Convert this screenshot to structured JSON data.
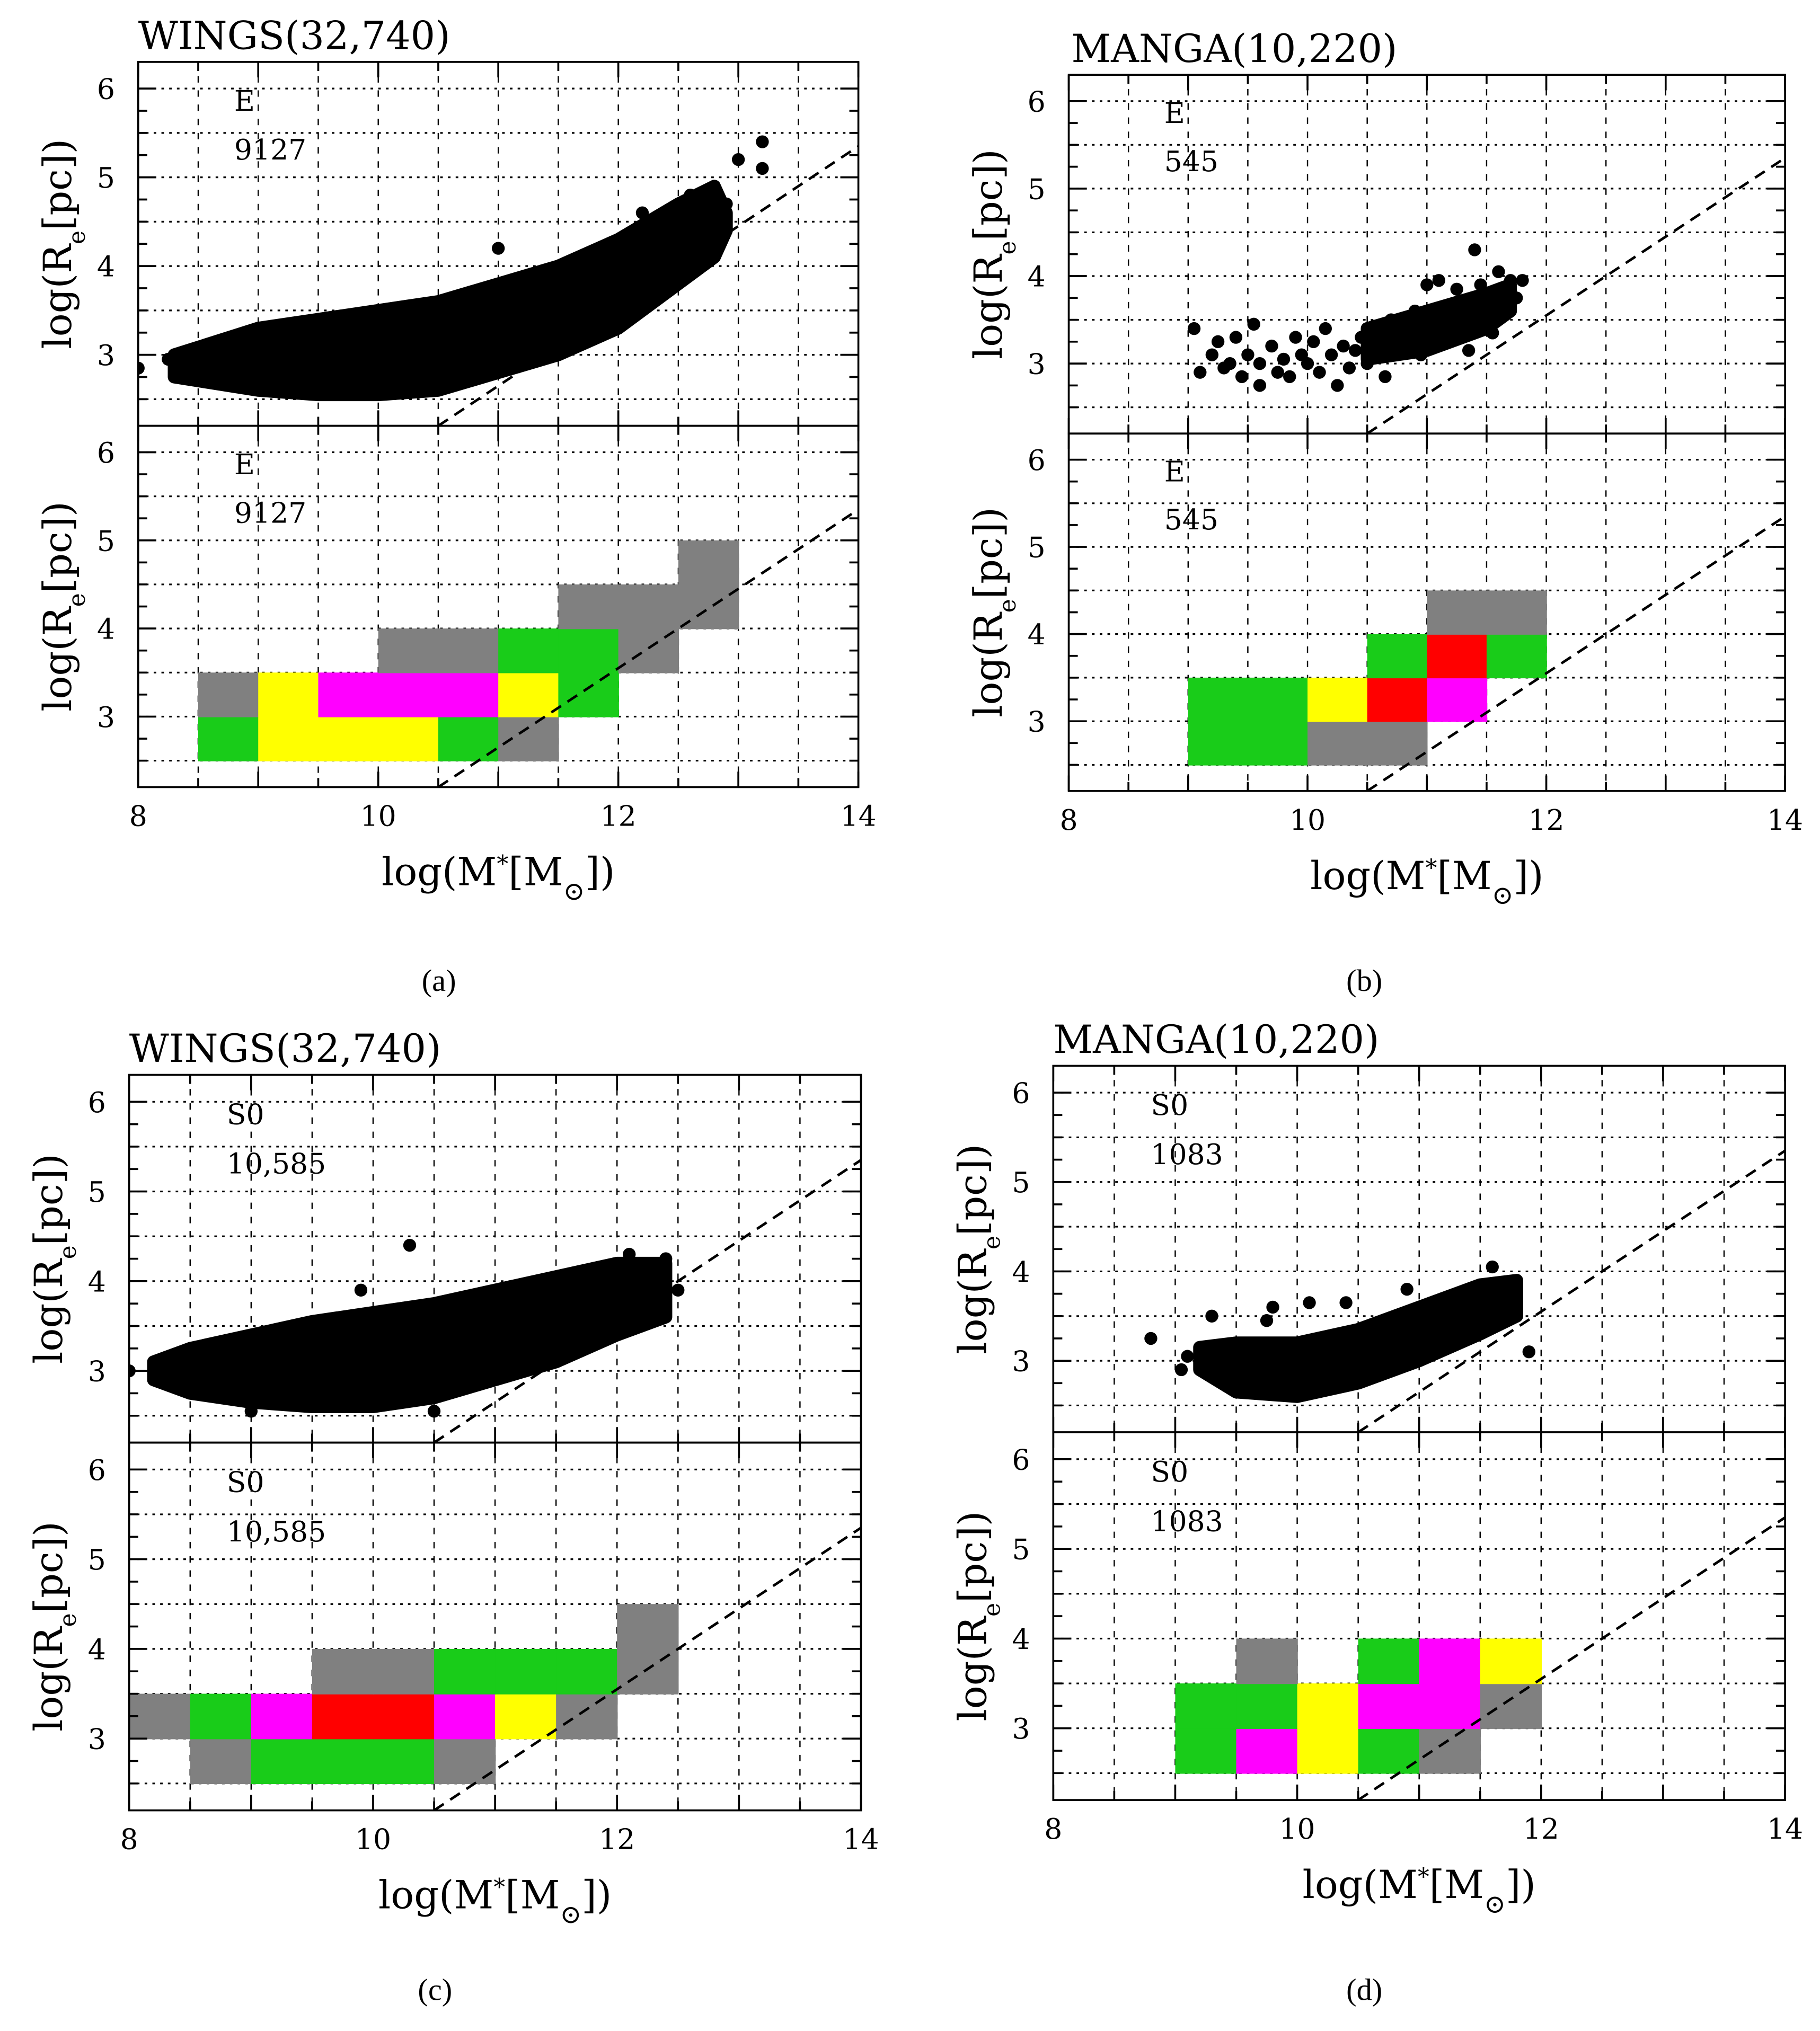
{
  "figure": {
    "colors": {
      "gray": "#808080",
      "yellow": "#ffff00",
      "magenta": "#ff00ff",
      "green": "#19cc19",
      "red": "#ff0000"
    }
  },
  "chart_data": [
    {
      "type": "scatter+heatmap",
      "caption": "(a)",
      "title": "WINGS(32,740)",
      "xlabel": {
        "pre": "log(M",
        "sup": "*",
        "mid": "[M",
        "sub": "⊙",
        "post": "])"
      },
      "ylabel": {
        "pre": "log(R",
        "sub": "e",
        "post": "[pc])"
      },
      "xlim": [
        8,
        14
      ],
      "ylim": [
        2.2,
        6.3
      ],
      "xticks": [
        8,
        10,
        12,
        14
      ],
      "yticks": [
        3,
        4,
        5,
        6
      ],
      "morph": "E",
      "count": "9127",
      "fit_line": [
        [
          10.5,
          2.2
        ],
        [
          14,
          5.35
        ]
      ],
      "scatter": {
        "envelope_lower": [
          [
            8.3,
            2.75
          ],
          [
            9,
            2.6
          ],
          [
            9.5,
            2.55
          ],
          [
            10,
            2.55
          ],
          [
            10.5,
            2.6
          ],
          [
            11,
            2.8
          ],
          [
            11.5,
            3.0
          ],
          [
            12,
            3.3
          ],
          [
            12.5,
            3.8
          ],
          [
            12.8,
            4.1
          ],
          [
            12.9,
            4.4
          ]
        ],
        "envelope_upper": [
          [
            8.3,
            3.0
          ],
          [
            9,
            3.3
          ],
          [
            9.5,
            3.4
          ],
          [
            10,
            3.5
          ],
          [
            10.5,
            3.6
          ],
          [
            11,
            3.8
          ],
          [
            11.5,
            4.0
          ],
          [
            12,
            4.3
          ],
          [
            12.5,
            4.7
          ],
          [
            12.8,
            4.9
          ],
          [
            12.9,
            4.6
          ]
        ],
        "points": [
          [
            8.0,
            2.85
          ],
          [
            8.25,
            2.95
          ],
          [
            13.2,
            5.4
          ],
          [
            13.0,
            5.2
          ],
          [
            13.2,
            5.1
          ],
          [
            12.6,
            4.8
          ],
          [
            12.9,
            4.7
          ],
          [
            11.0,
            4.2
          ],
          [
            12.2,
            4.6
          ],
          [
            8.6,
            3.1
          ]
        ]
      },
      "bins": [
        {
          "x": 8.5,
          "y": 2.5,
          "c": "green"
        },
        {
          "x": 9,
          "y": 2.5,
          "c": "yellow"
        },
        {
          "x": 9.5,
          "y": 2.5,
          "c": "yellow"
        },
        {
          "x": 10,
          "y": 2.5,
          "c": "yellow"
        },
        {
          "x": 10.5,
          "y": 2.5,
          "c": "green"
        },
        {
          "x": 11,
          "y": 2.5,
          "c": "gray"
        },
        {
          "x": 8.5,
          "y": 3,
          "c": "gray"
        },
        {
          "x": 9,
          "y": 3,
          "c": "yellow"
        },
        {
          "x": 9.5,
          "y": 3,
          "c": "magenta"
        },
        {
          "x": 10,
          "y": 3,
          "c": "magenta"
        },
        {
          "x": 10.5,
          "y": 3,
          "c": "magenta"
        },
        {
          "x": 11,
          "y": 3,
          "c": "yellow"
        },
        {
          "x": 11.5,
          "y": 3,
          "c": "green"
        },
        {
          "x": 10,
          "y": 3.5,
          "c": "gray"
        },
        {
          "x": 10.5,
          "y": 3.5,
          "c": "gray"
        },
        {
          "x": 11,
          "y": 3.5,
          "c": "green"
        },
        {
          "x": 11.5,
          "y": 3.5,
          "c": "green"
        },
        {
          "x": 12,
          "y": 3.5,
          "c": "gray"
        },
        {
          "x": 11.5,
          "y": 4,
          "c": "gray"
        },
        {
          "x": 12,
          "y": 4,
          "c": "gray"
        },
        {
          "x": 12.5,
          "y": 4,
          "c": "gray"
        },
        {
          "x": 12.5,
          "y": 4.5,
          "c": "gray"
        }
      ]
    },
    {
      "type": "scatter+heatmap",
      "caption": "(b)",
      "title": "MANGA(10,220)",
      "xlabel": {
        "pre": "log(M",
        "sup": "*",
        "mid": "[M",
        "sub": "⊙",
        "post": "])"
      },
      "ylabel": {
        "pre": "log(R",
        "sub": "e",
        "post": "[pc])"
      },
      "xlim": [
        8,
        14
      ],
      "ylim": [
        2.2,
        6.3
      ],
      "xticks": [
        8,
        10,
        12,
        14
      ],
      "yticks": [
        3,
        4,
        5,
        6
      ],
      "morph": "E",
      "count": "545",
      "fit_line": [
        [
          10.5,
          2.2
        ],
        [
          14,
          5.35
        ]
      ],
      "scatter": {
        "envelope_lower": [
          [
            10.5,
            3.05
          ],
          [
            11,
            3.15
          ],
          [
            11.5,
            3.4
          ],
          [
            11.7,
            3.6
          ]
        ],
        "envelope_upper": [
          [
            10.5,
            3.4
          ],
          [
            11,
            3.6
          ],
          [
            11.5,
            3.8
          ],
          [
            11.7,
            3.9
          ]
        ],
        "points": [
          [
            9.05,
            3.4
          ],
          [
            9.1,
            2.9
          ],
          [
            9.2,
            3.1
          ],
          [
            9.25,
            3.25
          ],
          [
            9.3,
            2.95
          ],
          [
            9.35,
            3.0
          ],
          [
            9.4,
            3.3
          ],
          [
            9.45,
            2.85
          ],
          [
            9.5,
            3.1
          ],
          [
            9.55,
            3.45
          ],
          [
            9.6,
            2.75
          ],
          [
            9.6,
            3.0
          ],
          [
            9.7,
            3.2
          ],
          [
            9.75,
            2.9
          ],
          [
            9.8,
            3.05
          ],
          [
            9.85,
            2.85
          ],
          [
            9.9,
            3.3
          ],
          [
            9.95,
            3.1
          ],
          [
            10.0,
            3.0
          ],
          [
            10.05,
            3.25
          ],
          [
            10.1,
            2.9
          ],
          [
            10.15,
            3.4
          ],
          [
            10.2,
            3.1
          ],
          [
            10.3,
            3.2
          ],
          [
            10.35,
            2.95
          ],
          [
            10.4,
            3.15
          ],
          [
            10.45,
            3.3
          ],
          [
            10.5,
            3.0
          ],
          [
            10.6,
            3.25
          ],
          [
            10.65,
            2.85
          ],
          [
            10.7,
            3.5
          ],
          [
            10.8,
            3.2
          ],
          [
            10.9,
            3.6
          ],
          [
            10.95,
            3.1
          ],
          [
            11.0,
            3.9
          ],
          [
            11.05,
            3.3
          ],
          [
            11.1,
            3.95
          ],
          [
            11.2,
            3.45
          ],
          [
            11.3,
            3.7
          ],
          [
            11.35,
            3.15
          ],
          [
            11.4,
            4.3
          ],
          [
            11.45,
            3.9
          ],
          [
            11.55,
            3.35
          ],
          [
            11.6,
            4.05
          ],
          [
            11.65,
            3.6
          ],
          [
            11.7,
            3.95
          ],
          [
            11.8,
            3.95
          ],
          [
            11.75,
            3.75
          ],
          [
            10.25,
            2.75
          ],
          [
            11.25,
            3.85
          ]
        ]
      },
      "bins": [
        {
          "x": 9,
          "y": 2.5,
          "c": "green"
        },
        {
          "x": 9.5,
          "y": 2.5,
          "c": "green"
        },
        {
          "x": 10,
          "y": 2.5,
          "c": "gray"
        },
        {
          "x": 10.5,
          "y": 2.5,
          "c": "gray"
        },
        {
          "x": 9,
          "y": 3,
          "c": "green"
        },
        {
          "x": 9.5,
          "y": 3,
          "c": "green"
        },
        {
          "x": 10,
          "y": 3,
          "c": "yellow"
        },
        {
          "x": 10.5,
          "y": 3,
          "c": "red"
        },
        {
          "x": 11,
          "y": 3,
          "c": "magenta"
        },
        {
          "x": 10.5,
          "y": 3.5,
          "c": "green"
        },
        {
          "x": 11,
          "y": 3.5,
          "c": "red"
        },
        {
          "x": 11.5,
          "y": 3.5,
          "c": "green"
        },
        {
          "x": 11,
          "y": 4,
          "c": "gray"
        },
        {
          "x": 11.5,
          "y": 4,
          "c": "gray"
        }
      ]
    },
    {
      "type": "scatter+heatmap",
      "caption": "(c)",
      "title": "WINGS(32,740)",
      "xlabel": {
        "pre": "log(M",
        "sup": "*",
        "mid": "[M",
        "sub": "⊙",
        "post": "])"
      },
      "ylabel": {
        "pre": "log(R",
        "sub": "e",
        "post": "[pc])"
      },
      "xlim": [
        8,
        14
      ],
      "ylim": [
        2.2,
        6.3
      ],
      "xticks": [
        8,
        10,
        12,
        14
      ],
      "yticks": [
        3,
        4,
        5,
        6
      ],
      "morph": "S0",
      "count": "10,585",
      "fit_line": [
        [
          10.5,
          2.2
        ],
        [
          14,
          5.35
        ]
      ],
      "scatter": {
        "envelope_lower": [
          [
            8.2,
            2.9
          ],
          [
            8.5,
            2.75
          ],
          [
            9,
            2.65
          ],
          [
            9.5,
            2.6
          ],
          [
            10,
            2.6
          ],
          [
            10.5,
            2.7
          ],
          [
            11,
            2.9
          ],
          [
            11.5,
            3.1
          ],
          [
            12,
            3.4
          ],
          [
            12.4,
            3.6
          ]
        ],
        "envelope_upper": [
          [
            8.2,
            3.1
          ],
          [
            8.5,
            3.25
          ],
          [
            9,
            3.4
          ],
          [
            9.5,
            3.55
          ],
          [
            10,
            3.65
          ],
          [
            10.5,
            3.75
          ],
          [
            11,
            3.9
          ],
          [
            11.5,
            4.05
          ],
          [
            12,
            4.2
          ],
          [
            12.4,
            4.2
          ]
        ],
        "points": [
          [
            8.0,
            3.0
          ],
          [
            8.3,
            3.15
          ],
          [
            10.3,
            4.4
          ],
          [
            12.5,
            3.9
          ],
          [
            12.2,
            3.5
          ],
          [
            9.9,
            3.9
          ],
          [
            12.1,
            4.3
          ],
          [
            12.4,
            4.25
          ],
          [
            9.0,
            2.55
          ],
          [
            10.5,
            2.55
          ]
        ]
      },
      "bins": [
        {
          "x": 8.5,
          "y": 2.5,
          "c": "gray"
        },
        {
          "x": 9,
          "y": 2.5,
          "c": "green"
        },
        {
          "x": 9.5,
          "y": 2.5,
          "c": "green"
        },
        {
          "x": 10,
          "y": 2.5,
          "c": "green"
        },
        {
          "x": 10.5,
          "y": 2.5,
          "c": "gray"
        },
        {
          "x": 8,
          "y": 3,
          "c": "gray"
        },
        {
          "x": 8.5,
          "y": 3,
          "c": "green"
        },
        {
          "x": 9,
          "y": 3,
          "c": "magenta"
        },
        {
          "x": 9.5,
          "y": 3,
          "c": "red"
        },
        {
          "x": 10,
          "y": 3,
          "c": "red"
        },
        {
          "x": 10.5,
          "y": 3,
          "c": "magenta"
        },
        {
          "x": 11,
          "y": 3,
          "c": "yellow"
        },
        {
          "x": 11.5,
          "y": 3,
          "c": "gray"
        },
        {
          "x": 9.5,
          "y": 3.5,
          "c": "gray"
        },
        {
          "x": 10,
          "y": 3.5,
          "c": "gray"
        },
        {
          "x": 10.5,
          "y": 3.5,
          "c": "green"
        },
        {
          "x": 11,
          "y": 3.5,
          "c": "green"
        },
        {
          "x": 11.5,
          "y": 3.5,
          "c": "green"
        },
        {
          "x": 12,
          "y": 3.5,
          "c": "gray"
        },
        {
          "x": 12,
          "y": 4,
          "c": "gray"
        }
      ]
    },
    {
      "type": "scatter+heatmap",
      "caption": "(d)",
      "title": "MANGA(10,220)",
      "xlabel": {
        "pre": "log(M",
        "sup": "*",
        "mid": "[M",
        "sub": "⊙",
        "post": "])"
      },
      "ylabel": {
        "pre": "log(R",
        "sub": "e",
        "post": "[pc])"
      },
      "xlim": [
        8,
        14
      ],
      "ylim": [
        2.2,
        6.3
      ],
      "xticks": [
        8,
        10,
        12,
        14
      ],
      "yticks": [
        3,
        4,
        5,
        6
      ],
      "morph": "S0",
      "count": "1083",
      "fit_line": [
        [
          10.5,
          2.2
        ],
        [
          14,
          5.35
        ]
      ],
      "scatter": {
        "envelope_lower": [
          [
            9.2,
            2.9
          ],
          [
            9.5,
            2.65
          ],
          [
            10,
            2.6
          ],
          [
            10.5,
            2.75
          ],
          [
            11,
            3.0
          ],
          [
            11.5,
            3.3
          ],
          [
            11.8,
            3.5
          ]
        ],
        "envelope_upper": [
          [
            9.2,
            3.15
          ],
          [
            9.5,
            3.2
          ],
          [
            10,
            3.2
          ],
          [
            10.5,
            3.35
          ],
          [
            11,
            3.6
          ],
          [
            11.5,
            3.85
          ],
          [
            11.8,
            3.9
          ]
        ],
        "points": [
          [
            8.8,
            3.25
          ],
          [
            9.3,
            3.5
          ],
          [
            9.8,
            3.6
          ],
          [
            10.1,
            3.65
          ],
          [
            10.4,
            3.65
          ],
          [
            11.9,
            3.1
          ],
          [
            11.6,
            4.05
          ],
          [
            9.1,
            3.05
          ],
          [
            9.75,
            3.45
          ],
          [
            10.9,
            3.8
          ],
          [
            11.7,
            3.85
          ],
          [
            9.05,
            2.9
          ]
        ]
      },
      "bins": [
        {
          "x": 9,
          "y": 2.5,
          "c": "green"
        },
        {
          "x": 9.5,
          "y": 2.5,
          "c": "magenta"
        },
        {
          "x": 10,
          "y": 2.5,
          "c": "yellow"
        },
        {
          "x": 10.5,
          "y": 2.5,
          "c": "green"
        },
        {
          "x": 11,
          "y": 2.5,
          "c": "gray"
        },
        {
          "x": 9,
          "y": 3,
          "c": "green"
        },
        {
          "x": 9.5,
          "y": 3,
          "c": "green"
        },
        {
          "x": 10,
          "y": 3,
          "c": "yellow"
        },
        {
          "x": 10.5,
          "y": 3,
          "c": "magenta"
        },
        {
          "x": 11,
          "y": 3,
          "c": "magenta"
        },
        {
          "x": 11.5,
          "y": 3,
          "c": "gray"
        },
        {
          "x": 9.5,
          "y": 3.5,
          "c": "gray"
        },
        {
          "x": 10.5,
          "y": 3.5,
          "c": "green"
        },
        {
          "x": 11,
          "y": 3.5,
          "c": "magenta"
        },
        {
          "x": 11.5,
          "y": 3.5,
          "c": "yellow"
        }
      ]
    }
  ]
}
